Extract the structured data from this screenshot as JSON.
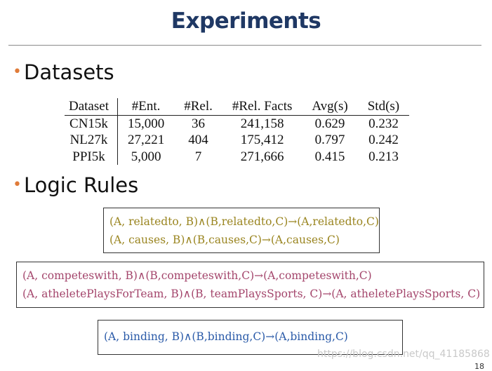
{
  "header": {
    "title": "Experiments"
  },
  "sections": [
    {
      "bullet": "•",
      "heading": "Datasets"
    },
    {
      "bullet": "•",
      "heading": "Logic Rules"
    }
  ],
  "table": {
    "columns": [
      "Dataset",
      "#Ent.",
      "#Rel.",
      "#Rel. Facts",
      "Avg(s)",
      "Std(s)"
    ],
    "rows": [
      [
        "CN15k",
        "15,000",
        "36",
        "241,158",
        "0.629",
        "0.232"
      ],
      [
        "NL27k",
        "27,221",
        "404",
        "175,412",
        "0.797",
        "0.242"
      ],
      [
        "PPI5k",
        "5,000",
        "7",
        "271,666",
        "0.415",
        "0.213"
      ]
    ]
  },
  "rule_boxes": [
    {
      "lines": [
        "(A, relatedto, B)∧(B,relatedto,C)→(A,relatedto,C)",
        "(A, causes, B)∧(B,causes,C)→(A,causes,C)"
      ]
    },
    {
      "lines": [
        "(A, competeswith, B)∧(B,competeswith,C)→(A,competeswith,C)",
        "(A, atheletePlaysForTeam, B)∧(B, teamPlaysSports, C)→(A, atheletePlaysSports, C)"
      ]
    },
    {
      "lines": [
        "(A, binding, B)∧(B,binding,C)→(A,binding,C)"
      ]
    }
  ],
  "watermark": "https://blog.csdn.net/qq_41185868",
  "page_number": "18"
}
